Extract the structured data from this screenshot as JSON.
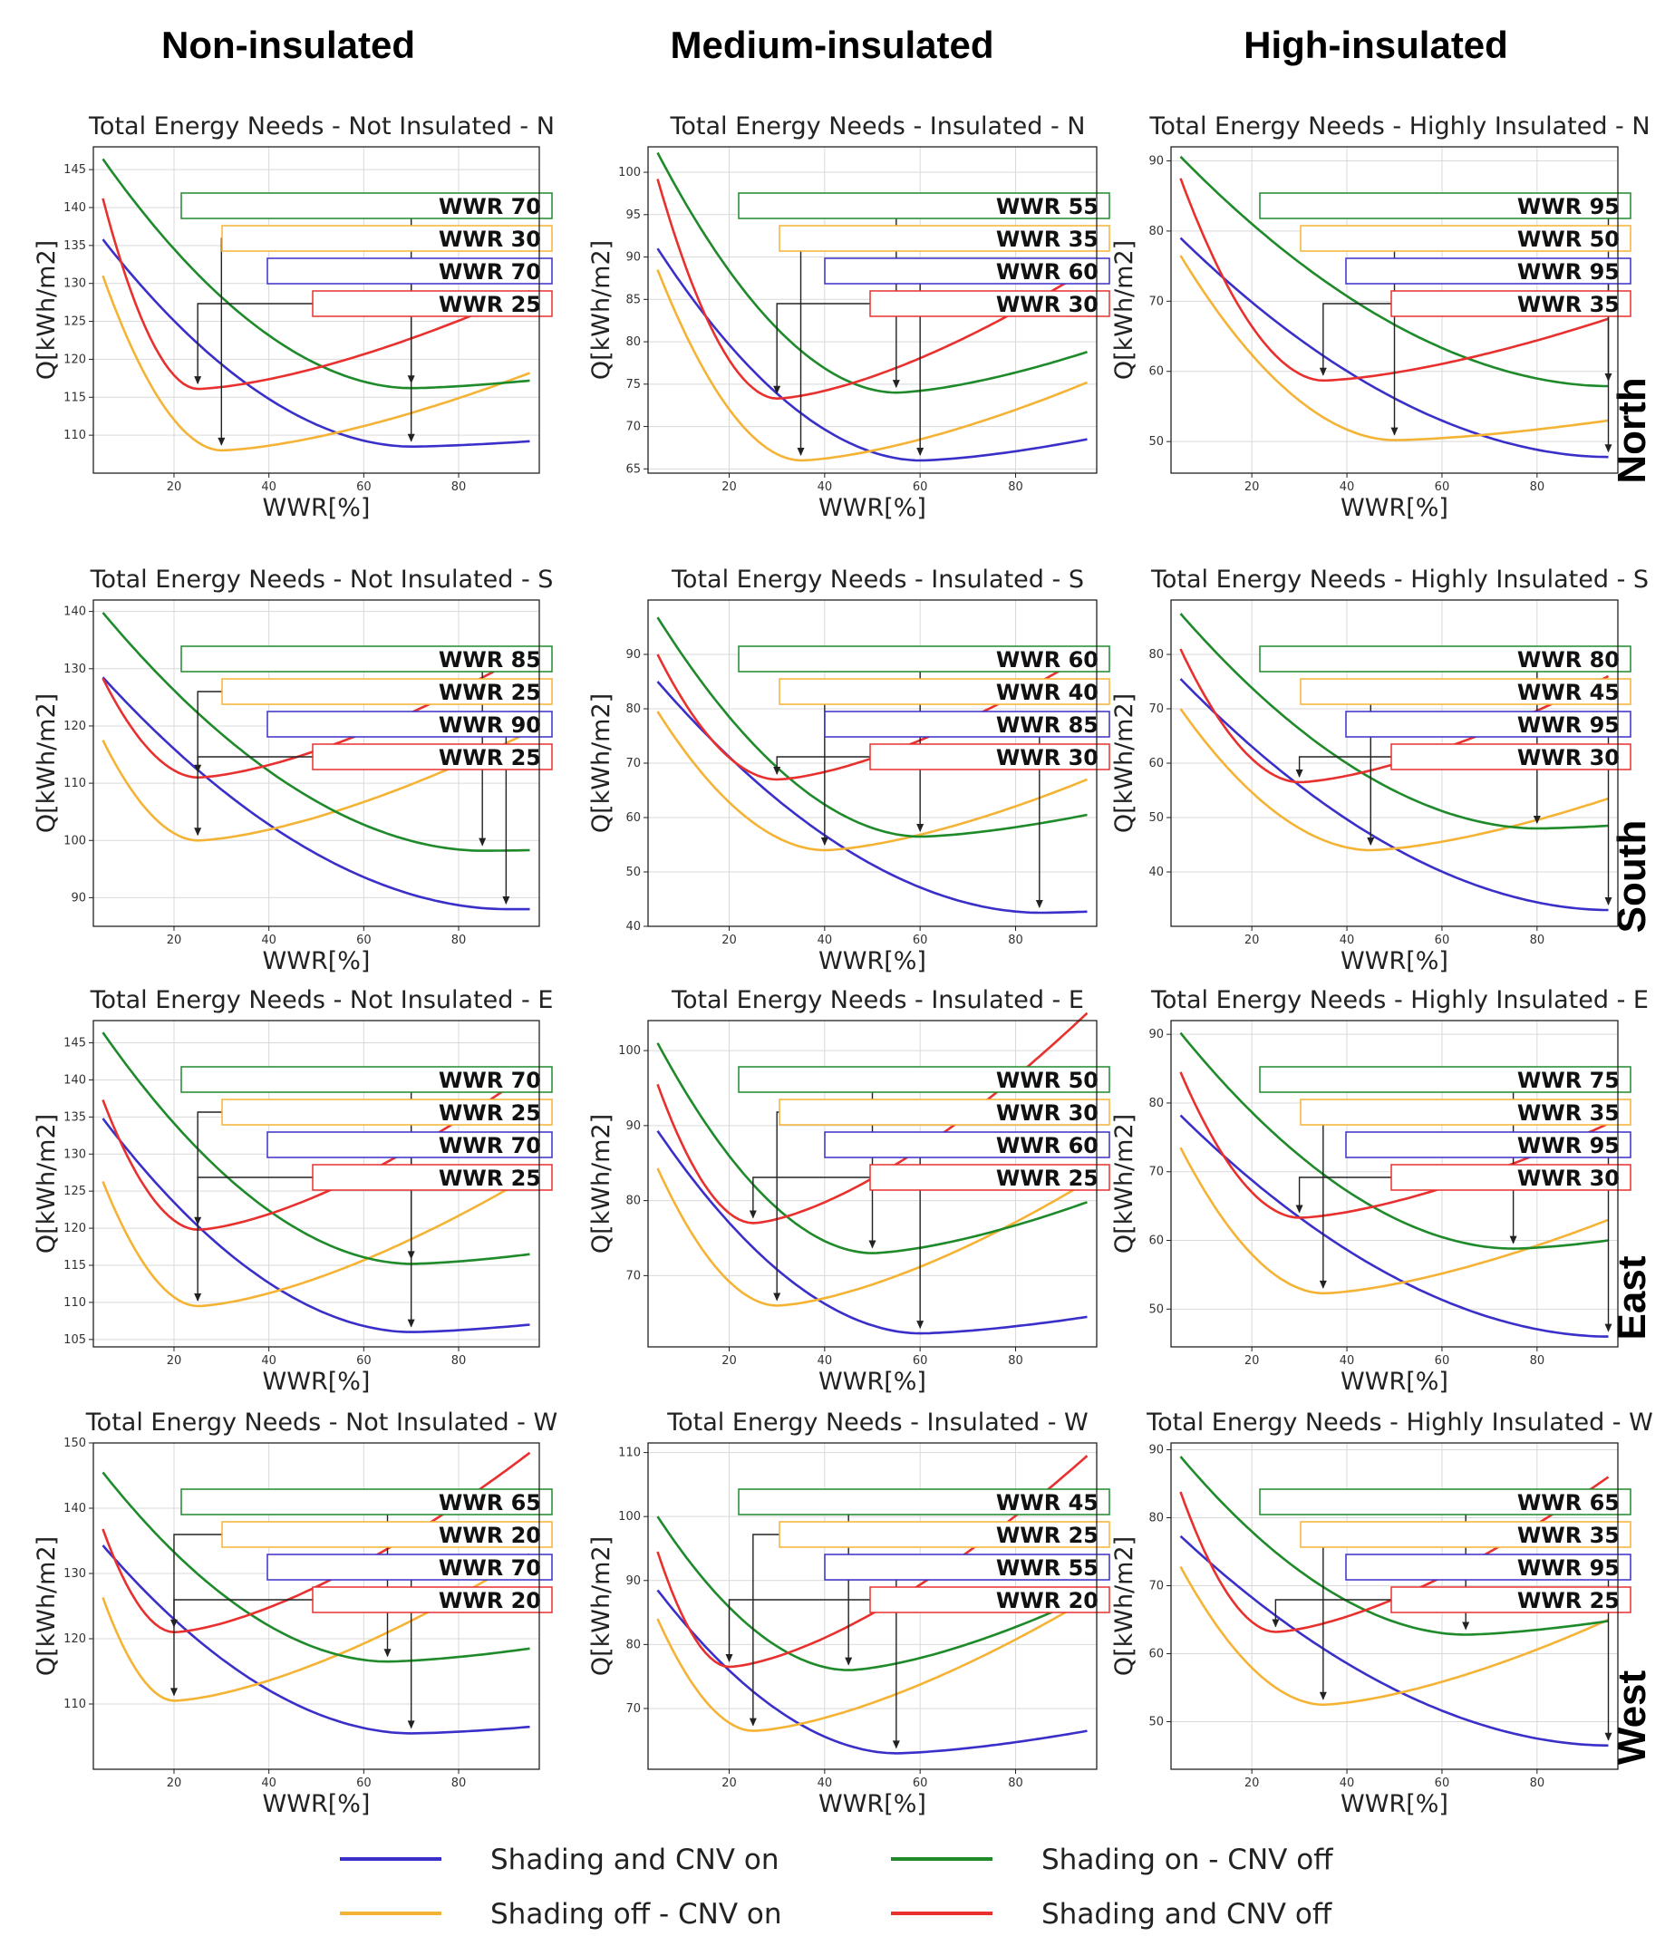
{
  "figure": {
    "column_titles": [
      "Non-insulated",
      "Medium-insulated",
      "High-insulated"
    ],
    "row_labels": [
      "North",
      "South",
      "East",
      "West"
    ],
    "legend": [
      {
        "label": "Shading and CNV on",
        "color": "#3a2fc9"
      },
      {
        "label": "Shading on - CNV off",
        "color": "#1e8a2a"
      },
      {
        "label": "Shading off - CNV on",
        "color": "#f5b335"
      },
      {
        "label": "Shading and CNV off",
        "color": "#e8302e"
      }
    ]
  },
  "chart_data": [
    {
      "type": "line",
      "title": "Total Energy Needs - Not Insulated - N",
      "xlabel": "WWR[%]",
      "ylabel": "Q[kWh/m2]",
      "xlim": [
        3,
        97
      ],
      "ylim": [
        105,
        148
      ],
      "yticks": [
        110,
        115,
        120,
        125,
        130,
        135,
        140,
        145
      ],
      "xticks": [
        20,
        40,
        60,
        80
      ],
      "series": [
        {
          "name": "Shading and CNV on",
          "minX": 70,
          "values": [
            135.8,
            108.5,
            109.2
          ]
        },
        {
          "name": "Shading off - CNV on",
          "minX": 30,
          "values": [
            131,
            108,
            118.2
          ]
        },
        {
          "name": "Shading on - CNV off",
          "minX": 70,
          "values": [
            146.4,
            116.2,
            117.2
          ]
        },
        {
          "name": "Shading and CNV off",
          "minX": 25,
          "values": [
            141.2,
            116.1,
            129
          ]
        }
      ],
      "annotations": [
        "WWR 70",
        "WWR 30",
        "WWR 70",
        "WWR 25"
      ]
    },
    {
      "type": "line",
      "title": "Total Energy Needs - Insulated - N",
      "xlabel": "WWR[%]",
      "ylabel": "Q[kWh/m2]",
      "xlim": [
        3,
        97
      ],
      "ylim": [
        64.5,
        103
      ],
      "yticks": [
        65,
        70,
        75,
        80,
        85,
        90,
        95,
        100
      ],
      "xticks": [
        20,
        40,
        60,
        80
      ],
      "series": [
        {
          "name": "Shading and CNV on",
          "minX": 60,
          "values": [
            91,
            66,
            68.5
          ]
        },
        {
          "name": "Shading off - CNV on",
          "minX": 35,
          "values": [
            88.5,
            66,
            75.2
          ]
        },
        {
          "name": "Shading on - CNV off",
          "minX": 55,
          "values": [
            102.3,
            74,
            78.8
          ]
        },
        {
          "name": "Shading and CNV off",
          "minX": 30,
          "values": [
            99.2,
            73.3,
            88.5
          ]
        }
      ],
      "annotations": [
        "WWR 55",
        "WWR 35",
        "WWR 60",
        "WWR 30"
      ]
    },
    {
      "type": "line",
      "title": "Total Energy Needs - Highly Insulated - N",
      "xlabel": "WWR[%]",
      "ylabel": "Q[kWh/m2]",
      "xlim": [
        3,
        97
      ],
      "ylim": [
        45.5,
        92
      ],
      "yticks": [
        50,
        60,
        70,
        80,
        90
      ],
      "xticks": [
        20,
        40,
        60,
        80
      ],
      "series": [
        {
          "name": "Shading and CNV on",
          "minX": 95,
          "values": [
            79,
            47.8,
            47.8
          ]
        },
        {
          "name": "Shading off - CNV on",
          "minX": 50,
          "values": [
            76.5,
            50.2,
            53
          ]
        },
        {
          "name": "Shading on - CNV off",
          "minX": 95,
          "values": [
            90.6,
            57.9,
            57.9
          ]
        },
        {
          "name": "Shading and CNV off",
          "minX": 35,
          "values": [
            87.5,
            58.7,
            67.5
          ]
        }
      ],
      "annotations": [
        "WWR 95",
        "WWR 50",
        "WWR 95",
        "WWR 35"
      ]
    },
    {
      "type": "line",
      "title": "Total Energy Needs - Not Insulated - S",
      "xlabel": "WWR[%]",
      "ylabel": "Q[kWh/m2]",
      "xlim": [
        3,
        97
      ],
      "ylim": [
        85,
        142
      ],
      "yticks": [
        90,
        100,
        110,
        120,
        130,
        140
      ],
      "xticks": [
        20,
        40,
        60,
        80
      ],
      "series": [
        {
          "name": "Shading and CNV on",
          "minX": 90,
          "values": [
            128.5,
            88,
            88
          ]
        },
        {
          "name": "Shading off - CNV on",
          "minX": 25,
          "values": [
            117.5,
            100,
            119
          ]
        },
        {
          "name": "Shading on - CNV off",
          "minX": 85,
          "values": [
            139.8,
            98.2,
            98.3
          ]
        },
        {
          "name": "Shading and CNV off",
          "minX": 25,
          "values": [
            128.3,
            111,
            133
          ]
        }
      ],
      "annotations": [
        "WWR 85",
        "WWR 25",
        "WWR 90",
        "WWR 25"
      ]
    },
    {
      "type": "line",
      "title": "Total Energy Needs - Insulated - S",
      "xlabel": "WWR[%]",
      "ylabel": "Q[kWh/m2]",
      "xlim": [
        3,
        97
      ],
      "ylim": [
        40,
        100
      ],
      "yticks": [
        40,
        50,
        60,
        70,
        80,
        90
      ],
      "xticks": [
        20,
        40,
        60,
        80
      ],
      "series": [
        {
          "name": "Shading and CNV on",
          "minX": 85,
          "values": [
            85,
            42.5,
            42.7
          ]
        },
        {
          "name": "Shading off - CNV on",
          "minX": 40,
          "values": [
            79.5,
            54,
            67
          ]
        },
        {
          "name": "Shading on - CNV off",
          "minX": 60,
          "values": [
            96.8,
            56.5,
            60.5
          ]
        },
        {
          "name": "Shading and CNV off",
          "minX": 30,
          "values": [
            90,
            67,
            90
          ]
        }
      ],
      "annotations": [
        "WWR 60",
        "WWR 40",
        "WWR 85",
        "WWR 30"
      ]
    },
    {
      "type": "line",
      "title": "Total Energy Needs - Highly Insulated - S",
      "xlabel": "WWR[%]",
      "ylabel": "Q[kWh/m2]",
      "xlim": [
        3,
        97
      ],
      "ylim": [
        30,
        90
      ],
      "yticks": [
        40,
        50,
        60,
        70,
        80
      ],
      "xticks": [
        20,
        40,
        60,
        80
      ],
      "series": [
        {
          "name": "Shading and CNV on",
          "minX": 95,
          "values": [
            75.5,
            33,
            33
          ]
        },
        {
          "name": "Shading off - CNV on",
          "minX": 45,
          "values": [
            70,
            44,
            53.5
          ]
        },
        {
          "name": "Shading on - CNV off",
          "minX": 80,
          "values": [
            87.5,
            48,
            48.5
          ]
        },
        {
          "name": "Shading and CNV off",
          "minX": 30,
          "values": [
            81,
            56.5,
            76
          ]
        }
      ],
      "annotations": [
        "WWR 80",
        "WWR 45",
        "WWR 95",
        "WWR 30"
      ]
    },
    {
      "type": "line",
      "title": "Total Energy Needs - Not Insulated - E",
      "xlabel": "WWR[%]",
      "ylabel": "Q[kWh/m2]",
      "xlim": [
        3,
        97
      ],
      "ylim": [
        104,
        148
      ],
      "yticks": [
        105,
        110,
        115,
        120,
        125,
        130,
        135,
        140,
        145
      ],
      "xticks": [
        20,
        40,
        60,
        80
      ],
      "series": [
        {
          "name": "Shading and CNV on",
          "minX": 70,
          "values": [
            134.8,
            106,
            107
          ]
        },
        {
          "name": "Shading off - CNV on",
          "minX": 25,
          "values": [
            126.3,
            109.5,
            127
          ]
        },
        {
          "name": "Shading on - CNV off",
          "minX": 70,
          "values": [
            146.4,
            115.2,
            116.5
          ]
        },
        {
          "name": "Shading and CNV off",
          "minX": 25,
          "values": [
            137.3,
            119.8,
            141
          ]
        }
      ],
      "annotations": [
        "WWR 70",
        "WWR 25",
        "WWR 70",
        "WWR 25"
      ]
    },
    {
      "type": "line",
      "title": "Total Energy Needs - Insulated - E",
      "xlabel": "WWR[%]",
      "ylabel": "Q[kWh/m2]",
      "xlim": [
        3,
        97
      ],
      "ylim": [
        60.5,
        104
      ],
      "yticks": [
        70,
        80,
        90,
        100
      ],
      "xticks": [
        20,
        40,
        60,
        80
      ],
      "series": [
        {
          "name": "Shading and CNV on",
          "minX": 60,
          "values": [
            89.3,
            62.3,
            64.5
          ]
        },
        {
          "name": "Shading off - CNV on",
          "minX": 30,
          "values": [
            84.3,
            66,
            82.5
          ]
        },
        {
          "name": "Shading on - CNV off",
          "minX": 50,
          "values": [
            101,
            73,
            79.8
          ]
        },
        {
          "name": "Shading and CNV off",
          "minX": 25,
          "values": [
            95.5,
            77,
            105
          ]
        }
      ],
      "annotations": [
        "WWR 50",
        "WWR 30",
        "WWR 60",
        "WWR 25"
      ]
    },
    {
      "type": "line",
      "title": "Total Energy Needs - Highly Insulated - E",
      "xlabel": "WWR[%]",
      "ylabel": "Q[kWh/m2]",
      "xlim": [
        3,
        97
      ],
      "ylim": [
        44.5,
        92
      ],
      "yticks": [
        50,
        60,
        70,
        80,
        90
      ],
      "xticks": [
        20,
        40,
        60,
        80
      ],
      "series": [
        {
          "name": "Shading and CNV on",
          "minX": 95,
          "values": [
            78.2,
            46,
            46
          ]
        },
        {
          "name": "Shading off - CNV on",
          "minX": 35,
          "values": [
            73.5,
            52.3,
            63
          ]
        },
        {
          "name": "Shading on - CNV off",
          "minX": 75,
          "values": [
            90.2,
            58.8,
            60
          ]
        },
        {
          "name": "Shading and CNV off",
          "minX": 30,
          "values": [
            84.5,
            63.3,
            77
          ]
        }
      ],
      "annotations": [
        "WWR 75",
        "WWR 35",
        "WWR 95",
        "WWR 30"
      ]
    },
    {
      "type": "line",
      "title": "Total Energy Needs - Not Insulated - W",
      "xlabel": "WWR[%]",
      "ylabel": "Q[kWh/m2]",
      "xlim": [
        3,
        97
      ],
      "ylim": [
        100,
        150
      ],
      "yticks": [
        110,
        120,
        130,
        140,
        150
      ],
      "xticks": [
        20,
        40,
        60,
        80
      ],
      "series": [
        {
          "name": "Shading and CNV on",
          "minX": 70,
          "values": [
            134.3,
            105.5,
            106.5
          ]
        },
        {
          "name": "Shading off - CNV on",
          "minX": 20,
          "values": [
            126.3,
            110.5,
            133
          ]
        },
        {
          "name": "Shading on - CNV off",
          "minX": 65,
          "values": [
            145.5,
            116.5,
            118.5
          ]
        },
        {
          "name": "Shading and CNV off",
          "minX": 20,
          "values": [
            136.8,
            121,
            148.5
          ]
        }
      ],
      "annotations": [
        "WWR 65",
        "WWR 20",
        "WWR 70",
        "WWR 20"
      ]
    },
    {
      "type": "line",
      "title": "Total Energy Needs - Insulated - W",
      "xlabel": "WWR[%]",
      "ylabel": "Q[kWh/m2]",
      "xlim": [
        3,
        97
      ],
      "ylim": [
        60.5,
        111.5
      ],
      "yticks": [
        70,
        80,
        90,
        100,
        110
      ],
      "xticks": [
        20,
        40,
        60,
        80
      ],
      "series": [
        {
          "name": "Shading and CNV on",
          "minX": 55,
          "values": [
            88.5,
            63,
            66.5
          ]
        },
        {
          "name": "Shading off - CNV on",
          "minX": 25,
          "values": [
            84,
            66.5,
            87
          ]
        },
        {
          "name": "Shading on - CNV off",
          "minX": 45,
          "values": [
            100,
            76,
            87.5
          ]
        },
        {
          "name": "Shading and CNV off",
          "minX": 20,
          "values": [
            94.5,
            76.5,
            109.5
          ]
        }
      ],
      "annotations": [
        "WWR 45",
        "WWR 25",
        "WWR 55",
        "WWR 20"
      ]
    },
    {
      "type": "line",
      "title": "Total Energy Needs - Highly Insulated - W",
      "xlabel": "WWR[%]",
      "ylabel": "Q[kWh/m2]",
      "xlim": [
        3,
        97
      ],
      "ylim": [
        43,
        91
      ],
      "yticks": [
        50,
        60,
        70,
        80,
        90
      ],
      "xticks": [
        20,
        40,
        60,
        80
      ],
      "series": [
        {
          "name": "Shading and CNV on",
          "minX": 95,
          "values": [
            77.3,
            46.5,
            46.5
          ]
        },
        {
          "name": "Shading off - CNV on",
          "minX": 35,
          "values": [
            72.8,
            52.5,
            65
          ]
        },
        {
          "name": "Shading on - CNV off",
          "minX": 65,
          "values": [
            89,
            62.8,
            64.8
          ]
        },
        {
          "name": "Shading and CNV off",
          "minX": 25,
          "values": [
            83.8,
            63.2,
            86
          ]
        }
      ],
      "annotations": [
        "WWR 65",
        "WWR 35",
        "WWR 95",
        "WWR 25"
      ]
    }
  ]
}
